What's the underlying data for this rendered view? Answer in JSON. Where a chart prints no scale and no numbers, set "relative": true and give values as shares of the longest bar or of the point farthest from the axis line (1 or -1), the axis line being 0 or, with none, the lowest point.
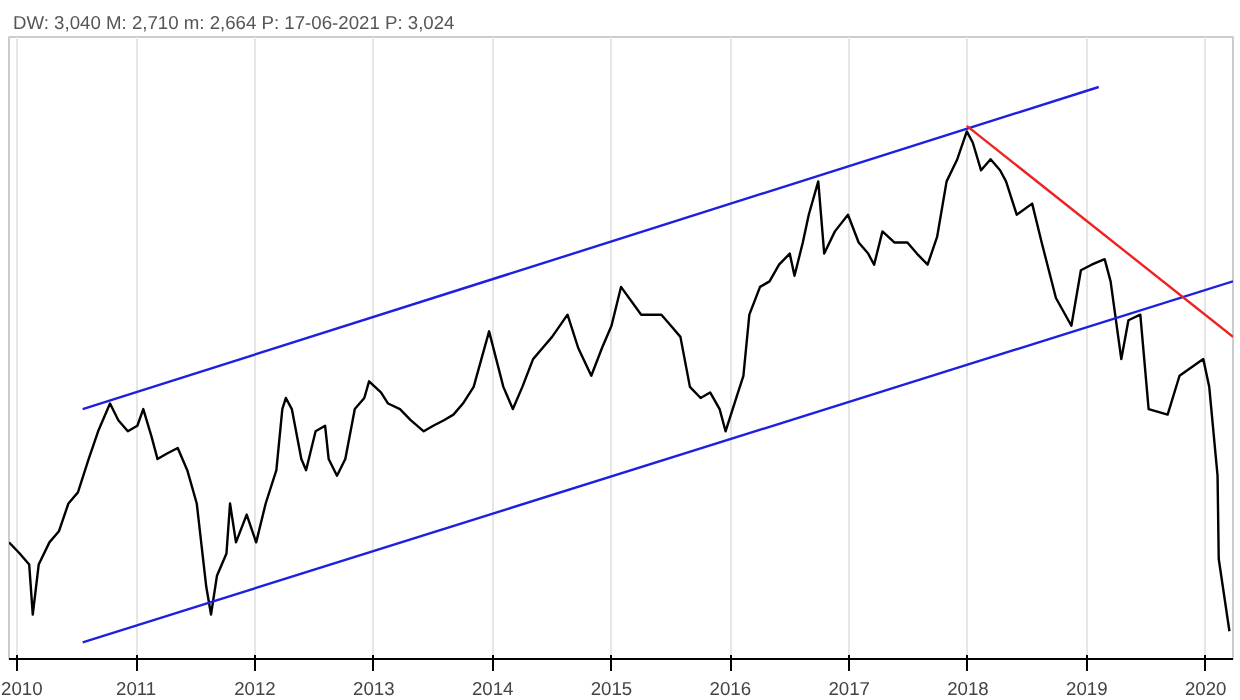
{
  "chart_data": {
    "type": "line",
    "relative": true,
    "annotations": [
      "DW: 3,040 M: 2,710 m: 2,664 P: 17-06-2021 P: 3,024"
    ],
    "xlim": [
      2009.93,
      2020.23
    ],
    "xticks": [
      2010,
      2011,
      2012,
      2013,
      2014,
      2015,
      2016,
      2017,
      2018,
      2019,
      2020
    ],
    "grid": "x",
    "tick_labels": "x",
    "series": [
      {
        "color": "#000000",
        "x": [
          2009.93,
          2010.02,
          2010.1,
          2010.13,
          2010.18,
          2010.27,
          2010.35,
          2010.43,
          2010.51,
          2010.6,
          2010.68,
          2010.78,
          2010.85,
          2010.93,
          2011.01,
          2011.06,
          2011.13,
          2011.18,
          2011.26,
          2011.35,
          2011.43,
          2011.51,
          2011.59,
          2011.63,
          2011.68,
          2011.76,
          2011.79,
          2011.84,
          2011.93,
          2012.01,
          2012.09,
          2012.18,
          2012.23,
          2012.26,
          2012.31,
          2012.39,
          2012.43,
          2012.51,
          2012.59,
          2012.62,
          2012.69,
          2012.76,
          2012.84,
          2012.92,
          2012.96,
          2013.01,
          2013.06,
          2013.12,
          2013.22,
          2013.31,
          2013.42,
          2013.5,
          2013.59,
          2013.67,
          2013.75,
          2013.84,
          2013.97,
          2014.09,
          2014.17,
          2014.25,
          2014.34,
          2014.42,
          2014.5,
          2014.63,
          2014.72,
          2014.83,
          2014.92,
          2015.0,
          2015.08,
          2015.25,
          2015.42,
          2015.5,
          2015.58,
          2015.66,
          2015.75,
          2015.83,
          2015.91,
          2015.96,
          2016.05,
          2016.11,
          2016.16,
          2016.25,
          2016.33,
          2016.41,
          2016.5,
          2016.54,
          2016.61,
          2016.66,
          2016.74,
          2016.79,
          2016.88,
          2016.99,
          2017.08,
          2017.16,
          2017.21,
          2017.28,
          2017.38,
          2017.49,
          2017.57,
          2017.66,
          2017.74,
          2017.82,
          2017.91,
          2017.99,
          2018.04,
          2018.11,
          2018.19,
          2018.27,
          2018.32,
          2018.41,
          2018.54,
          2018.62,
          2018.74,
          2018.87,
          2018.95,
          2019.04,
          2019.15,
          2019.2,
          2019.29,
          2019.35,
          2019.45,
          2019.52,
          2019.68,
          2019.78,
          2019.98,
          2020.03,
          2020.1,
          2020.11,
          2020.2
        ],
        "values": [
          0.18,
          0.16,
          0.14,
          0.05,
          0.14,
          0.18,
          0.2,
          0.25,
          0.27,
          0.33,
          0.38,
          0.43,
          0.4,
          0.38,
          0.39,
          0.42,
          0.37,
          0.33,
          0.34,
          0.35,
          0.31,
          0.25,
          0.1,
          0.05,
          0.12,
          0.16,
          0.25,
          0.18,
          0.23,
          0.18,
          0.25,
          0.31,
          0.42,
          0.44,
          0.42,
          0.33,
          0.31,
          0.38,
          0.39,
          0.33,
          0.3,
          0.33,
          0.42,
          0.44,
          0.47,
          0.46,
          0.45,
          0.43,
          0.42,
          0.4,
          0.38,
          0.39,
          0.4,
          0.41,
          0.43,
          0.46,
          0.56,
          0.46,
          0.42,
          0.46,
          0.51,
          0.53,
          0.55,
          0.59,
          0.53,
          0.48,
          0.53,
          0.57,
          0.64,
          0.59,
          0.59,
          0.57,
          0.55,
          0.46,
          0.44,
          0.45,
          0.42,
          0.38,
          0.44,
          0.48,
          0.59,
          0.64,
          0.65,
          0.68,
          0.7,
          0.66,
          0.72,
          0.77,
          0.83,
          0.7,
          0.74,
          0.77,
          0.72,
          0.7,
          0.68,
          0.74,
          0.72,
          0.72,
          0.7,
          0.68,
          0.73,
          0.83,
          0.87,
          0.92,
          0.9,
          0.85,
          0.87,
          0.85,
          0.83,
          0.77,
          0.79,
          0.72,
          0.62,
          0.57,
          0.67,
          0.68,
          0.69,
          0.65,
          0.51,
          0.58,
          0.59,
          0.42,
          0.41,
          0.48,
          0.51,
          0.46,
          0.3,
          0.15,
          0.02
        ]
      },
      {
        "color": "#1f1fe0",
        "x": [
          2010.55,
          2019.1
        ],
        "values": [
          0.42,
          1.0
        ]
      },
      {
        "color": "#1f1fe0",
        "x": [
          2010.55,
          2020.23
        ],
        "values": [
          0.0,
          0.65
        ]
      },
      {
        "color": "#ee2222",
        "x": [
          2017.99,
          2020.23
        ],
        "values": [
          0.93,
          0.55
        ]
      }
    ]
  }
}
